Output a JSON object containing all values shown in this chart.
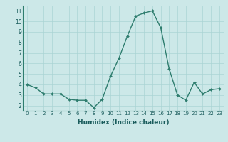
{
  "x": [
    0,
    1,
    2,
    3,
    4,
    5,
    6,
    7,
    8,
    9,
    10,
    11,
    12,
    13,
    14,
    15,
    16,
    17,
    18,
    19,
    20,
    21,
    22,
    23
  ],
  "y": [
    4.0,
    3.7,
    3.1,
    3.1,
    3.1,
    2.6,
    2.5,
    2.5,
    1.8,
    2.6,
    4.8,
    6.5,
    8.6,
    10.5,
    10.8,
    11.0,
    9.4,
    5.5,
    3.0,
    2.5,
    4.2,
    3.1,
    3.5,
    3.6
  ],
  "xlabel": "Humidex (Indice chaleur)",
  "ylim": [
    1.5,
    11.5
  ],
  "xlim": [
    -0.5,
    23.5
  ],
  "yticks": [
    2,
    3,
    4,
    5,
    6,
    7,
    8,
    9,
    10,
    11
  ],
  "xticks": [
    0,
    1,
    2,
    3,
    4,
    5,
    6,
    7,
    8,
    9,
    10,
    11,
    12,
    13,
    14,
    15,
    16,
    17,
    18,
    19,
    20,
    21,
    22,
    23
  ],
  "line_color": "#2e7d6e",
  "marker_color": "#2e7d6e",
  "bg_color": "#cce8e8",
  "grid_color": "#aad4d4",
  "plot_bg_color": "#cce8e8",
  "label_color": "#1a5c5c",
  "tick_label_color": "#1a5c5c",
  "axis_line_color": "#2e7d6e",
  "bottom_bar_color": "#cce8e8"
}
